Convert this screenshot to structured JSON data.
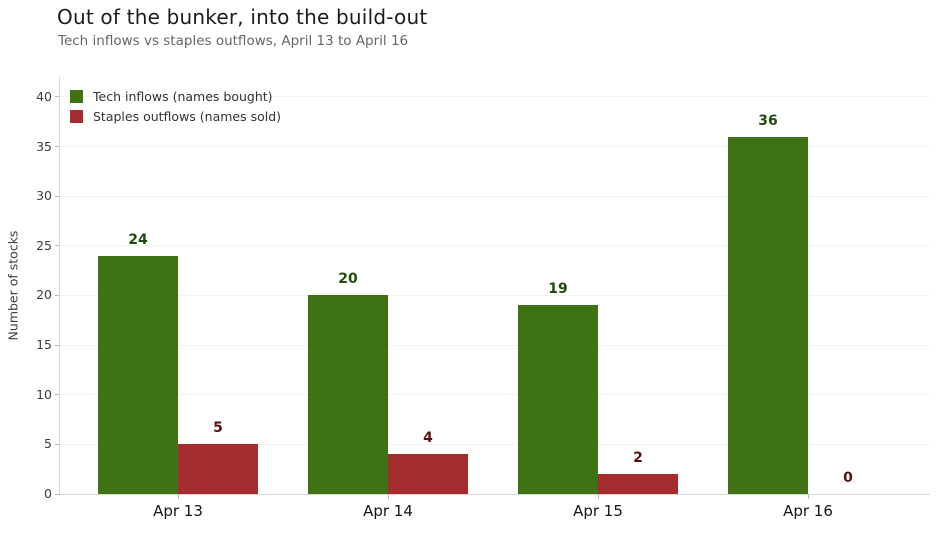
{
  "chart_data": {
    "type": "bar",
    "title": "Out of the bunker, into the build-out",
    "subtitle": "Tech inflows vs staples outflows, April 13 to April 16",
    "categories": [
      "Apr 13",
      "Apr 14",
      "Apr 15",
      "Apr 16"
    ],
    "series": [
      {
        "name": "Tech inflows (names bought)",
        "values": [
          24,
          20,
          19,
          36
        ],
        "color": "#3e7212",
        "value_label_color": "#1e4d0a"
      },
      {
        "name": "Staples outflows (names sold)",
        "values": [
          5,
          4,
          2,
          0
        ],
        "color": "#a52c2c",
        "value_label_color": "#571212"
      }
    ],
    "xlabel": "",
    "ylabel": "Number of stocks",
    "ylim": [
      0,
      42
    ],
    "yticks": [
      0,
      5,
      10,
      15,
      20,
      25,
      30,
      35,
      40
    ],
    "grid": true,
    "legend_position": "upper-left",
    "value_labels_shown": true
  }
}
